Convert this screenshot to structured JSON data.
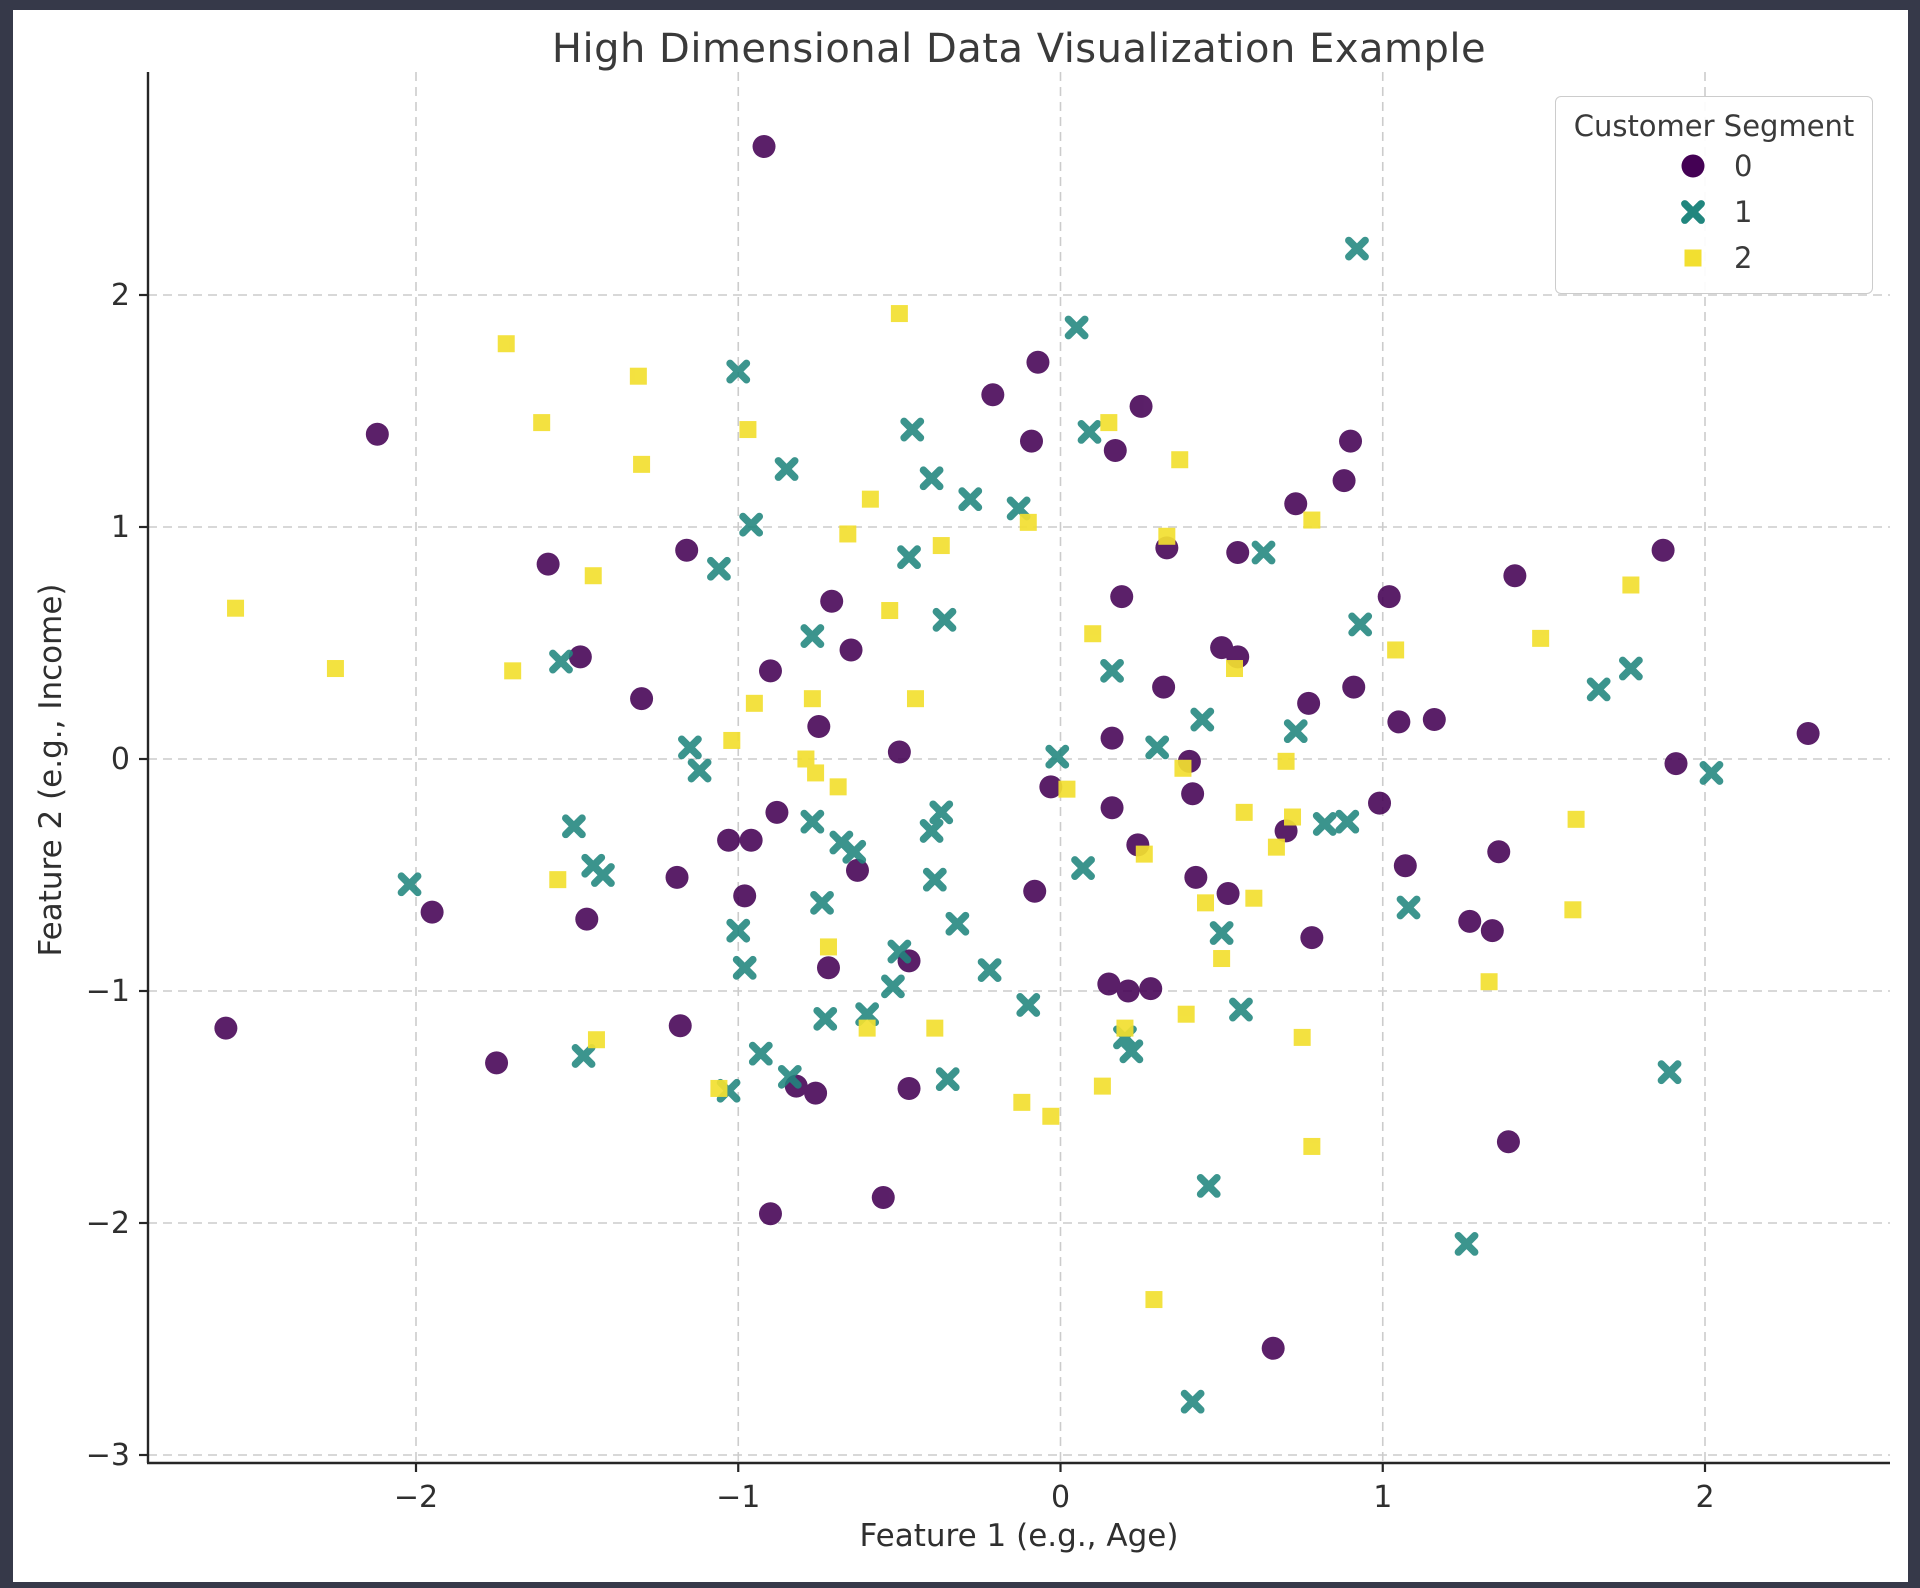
{
  "window": {
    "background": "#363949",
    "figure_background": "#ffffff"
  },
  "chart_data": {
    "type": "scatter",
    "title": "High Dimensional Data Visualization Example",
    "xlabel": "Feature 1 (e.g., Age)",
    "ylabel": "Feature 2 (e.g., Income)",
    "xlim": [
      -2.83,
      2.57
    ],
    "ylim": [
      -3.03,
      2.96
    ],
    "xticks": [
      -2,
      -1,
      0,
      1,
      2
    ],
    "yticks": [
      -3,
      -2,
      -1,
      0,
      1,
      2
    ],
    "grid": true,
    "grid_style": "dashed",
    "legend": {
      "title": "Customer Segment",
      "position": "upper right",
      "entries": [
        {
          "label": "0",
          "marker": "circle",
          "color": "#440154"
        },
        {
          "label": "1",
          "marker": "x",
          "color": "#21867e"
        },
        {
          "label": "2",
          "marker": "square",
          "color": "#f2df30"
        }
      ]
    },
    "series": [
      {
        "name": "0",
        "marker": "circle",
        "color": "#440154",
        "opacity": 0.88,
        "points": [
          [
            -0.92,
            2.64
          ],
          [
            -2.12,
            1.4
          ],
          [
            -0.21,
            1.57
          ],
          [
            -0.07,
            1.71
          ],
          [
            -0.09,
            1.37
          ],
          [
            0.25,
            1.52
          ],
          [
            0.17,
            1.33
          ],
          [
            0.9,
            1.37
          ],
          [
            0.88,
            1.2
          ],
          [
            0.73,
            1.1
          ],
          [
            -1.16,
            0.9
          ],
          [
            -1.59,
            0.84
          ],
          [
            -1.49,
            0.44
          ],
          [
            -1.3,
            0.26
          ],
          [
            -0.71,
            0.68
          ],
          [
            -0.65,
            0.47
          ],
          [
            -0.9,
            0.38
          ],
          [
            -0.75,
            0.14
          ],
          [
            -0.5,
            0.03
          ],
          [
            -0.88,
            -0.23
          ],
          [
            -1.03,
            -0.35
          ],
          [
            -0.96,
            -0.35
          ],
          [
            -0.63,
            -0.48
          ],
          [
            -1.19,
            -0.51
          ],
          [
            -0.98,
            -0.59
          ],
          [
            -1.95,
            -0.66
          ],
          [
            -1.47,
            -0.69
          ],
          [
            -0.08,
            -0.57
          ],
          [
            -0.47,
            -0.87
          ],
          [
            -0.72,
            -0.9
          ],
          [
            0.15,
            -0.97
          ],
          [
            0.21,
            -1.0
          ],
          [
            0.28,
            -0.99
          ],
          [
            0.19,
            0.7
          ],
          [
            0.32,
            0.31
          ],
          [
            0.16,
            0.09
          ],
          [
            -0.03,
            -0.12
          ],
          [
            0.41,
            -0.15
          ],
          [
            0.16,
            -0.21
          ],
          [
            0.24,
            -0.37
          ],
          [
            0.55,
            0.89
          ],
          [
            0.33,
            0.91
          ],
          [
            1.41,
            0.79
          ],
          [
            1.87,
            0.9
          ],
          [
            1.02,
            0.7
          ],
          [
            0.5,
            0.48
          ],
          [
            0.55,
            0.44
          ],
          [
            0.91,
            0.31
          ],
          [
            0.77,
            0.24
          ],
          [
            1.05,
            0.16
          ],
          [
            1.16,
            0.17
          ],
          [
            0.4,
            -0.01
          ],
          [
            0.99,
            -0.19
          ],
          [
            0.7,
            -0.31
          ],
          [
            1.36,
            -0.4
          ],
          [
            1.07,
            -0.46
          ],
          [
            1.91,
            -0.02
          ],
          [
            2.32,
            0.11
          ],
          [
            0.42,
            -0.51
          ],
          [
            0.52,
            -0.58
          ],
          [
            1.27,
            -0.7
          ],
          [
            1.34,
            -0.74
          ],
          [
            0.78,
            -0.77
          ],
          [
            -2.59,
            -1.16
          ],
          [
            -1.75,
            -1.31
          ],
          [
            -1.18,
            -1.15
          ],
          [
            -0.82,
            -1.41
          ],
          [
            -0.76,
            -1.44
          ],
          [
            -0.47,
            -1.42
          ],
          [
            -0.55,
            -1.89
          ],
          [
            -0.9,
            -1.96
          ],
          [
            1.39,
            -1.65
          ],
          [
            0.66,
            -2.54
          ]
        ]
      },
      {
        "name": "1",
        "marker": "x",
        "color": "#21867e",
        "opacity": 0.88,
        "points": [
          [
            0.92,
            2.2
          ],
          [
            0.05,
            1.86
          ],
          [
            -1.0,
            1.67
          ],
          [
            -0.46,
            1.42
          ],
          [
            0.09,
            1.41
          ],
          [
            -0.85,
            1.25
          ],
          [
            -0.4,
            1.21
          ],
          [
            -0.28,
            1.12
          ],
          [
            -0.13,
            1.08
          ],
          [
            -0.96,
            1.01
          ],
          [
            -1.06,
            0.82
          ],
          [
            -0.47,
            0.87
          ],
          [
            -1.55,
            0.42
          ],
          [
            -0.36,
            0.6
          ],
          [
            -0.77,
            0.53
          ],
          [
            -1.15,
            0.05
          ],
          [
            -1.12,
            -0.05
          ],
          [
            -0.01,
            0.01
          ],
          [
            -2.02,
            -0.54
          ],
          [
            -1.51,
            -0.29
          ],
          [
            -1.45,
            -0.46
          ],
          [
            -1.42,
            -0.5
          ],
          [
            -0.77,
            -0.27
          ],
          [
            -0.68,
            -0.36
          ],
          [
            -0.64,
            -0.4
          ],
          [
            -0.37,
            -0.23
          ],
          [
            -0.4,
            -0.31
          ],
          [
            -0.39,
            -0.52
          ],
          [
            -0.74,
            -0.62
          ],
          [
            -0.32,
            -0.71
          ],
          [
            -1.0,
            -0.74
          ],
          [
            -0.5,
            -0.83
          ],
          [
            -0.98,
            -0.9
          ],
          [
            -0.22,
            -0.91
          ],
          [
            -0.52,
            -0.98
          ],
          [
            -0.1,
            -1.06
          ],
          [
            0.63,
            0.89
          ],
          [
            0.93,
            0.58
          ],
          [
            1.77,
            0.39
          ],
          [
            1.67,
            0.3
          ],
          [
            0.44,
            0.17
          ],
          [
            0.73,
            0.12
          ],
          [
            0.3,
            0.05
          ],
          [
            0.16,
            0.38
          ],
          [
            0.82,
            -0.28
          ],
          [
            0.89,
            -0.27
          ],
          [
            1.08,
            -0.64
          ],
          [
            0.5,
            -0.75
          ],
          [
            2.02,
            -0.06
          ],
          [
            0.07,
            -0.47
          ],
          [
            -0.73,
            -1.12
          ],
          [
            -0.6,
            -1.1
          ],
          [
            -0.93,
            -1.27
          ],
          [
            -1.03,
            -1.43
          ],
          [
            -0.84,
            -1.37
          ],
          [
            -0.35,
            -1.38
          ],
          [
            -1.48,
            -1.28
          ],
          [
            0.2,
            -1.2
          ],
          [
            0.22,
            -1.26
          ],
          [
            0.56,
            -1.08
          ],
          [
            1.89,
            -1.35
          ],
          [
            0.46,
            -1.84
          ],
          [
            1.26,
            -2.09
          ],
          [
            0.41,
            -2.77
          ]
        ]
      },
      {
        "name": "2",
        "marker": "square",
        "color": "#f2df30",
        "opacity": 0.92,
        "points": [
          [
            -0.5,
            1.92
          ],
          [
            -1.72,
            1.79
          ],
          [
            -1.31,
            1.65
          ],
          [
            -1.61,
            1.45
          ],
          [
            -1.3,
            1.27
          ],
          [
            -0.97,
            1.42
          ],
          [
            0.15,
            1.45
          ],
          [
            0.37,
            1.29
          ],
          [
            -0.59,
            1.12
          ],
          [
            -0.1,
            1.02
          ],
          [
            -0.66,
            0.97
          ],
          [
            -0.37,
            0.92
          ],
          [
            0.78,
            1.03
          ],
          [
            0.33,
            0.96
          ],
          [
            -2.56,
            0.65
          ],
          [
            -2.25,
            0.39
          ],
          [
            -1.7,
            0.38
          ],
          [
            -1.45,
            0.79
          ],
          [
            -0.53,
            0.64
          ],
          [
            -0.77,
            0.26
          ],
          [
            -0.95,
            0.24
          ],
          [
            -0.45,
            0.26
          ],
          [
            -1.02,
            0.08
          ],
          [
            -0.79,
            0.0
          ],
          [
            -0.76,
            -0.06
          ],
          [
            -0.69,
            -0.12
          ],
          [
            0.1,
            0.54
          ],
          [
            0.02,
            -0.13
          ],
          [
            0.38,
            -0.04
          ],
          [
            0.26,
            -0.41
          ],
          [
            -1.56,
            -0.52
          ],
          [
            -0.72,
            -0.81
          ],
          [
            1.77,
            0.75
          ],
          [
            1.04,
            0.47
          ],
          [
            1.49,
            0.52
          ],
          [
            0.54,
            0.39
          ],
          [
            0.7,
            -0.01
          ],
          [
            0.57,
            -0.23
          ],
          [
            0.72,
            -0.25
          ],
          [
            0.67,
            -0.38
          ],
          [
            1.6,
            -0.26
          ],
          [
            1.59,
            -0.65
          ],
          [
            0.45,
            -0.62
          ],
          [
            0.6,
            -0.6
          ],
          [
            0.5,
            -0.86
          ],
          [
            1.33,
            -0.96
          ],
          [
            -1.44,
            -1.21
          ],
          [
            -0.6,
            -1.16
          ],
          [
            -0.39,
            -1.16
          ],
          [
            -1.06,
            -1.42
          ],
          [
            -0.12,
            -1.48
          ],
          [
            -0.03,
            -1.54
          ],
          [
            0.2,
            -1.16
          ],
          [
            0.13,
            -1.41
          ],
          [
            0.75,
            -1.2
          ],
          [
            0.39,
            -1.1
          ],
          [
            0.78,
            -1.67
          ],
          [
            0.29,
            -2.33
          ]
        ]
      }
    ]
  }
}
